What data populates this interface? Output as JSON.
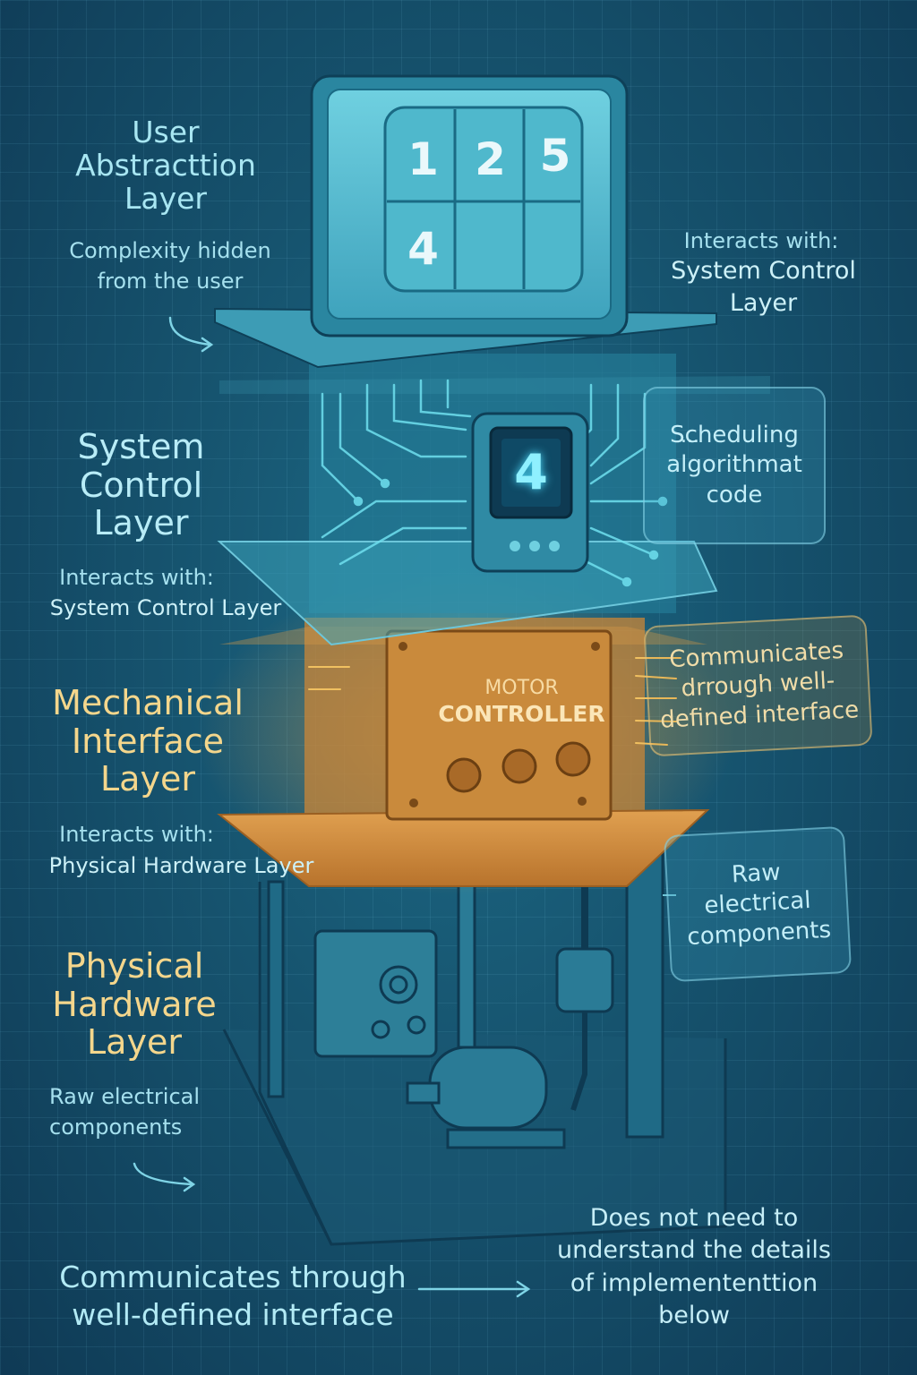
{
  "user_layer": {
    "title_lines": [
      "User",
      "Abstracttion",
      "Layer"
    ],
    "desc_lines": [
      "Complexity hidden",
      "from the user"
    ],
    "interacts_label": "Interacts with:",
    "interacts_target_lines": [
      "System Control",
      "Layer"
    ],
    "keypad": [
      "1",
      "2",
      "5",
      "4",
      "",
      ""
    ]
  },
  "system_layer": {
    "title_lines": [
      "System",
      "Control",
      "Layer"
    ],
    "interacts_label": "Interacts with:",
    "interacts_target": "System Control Layer",
    "display_value": "4",
    "callout_dots": "...",
    "callout_lines": [
      "Scheduling",
      "algorithmat",
      "code"
    ]
  },
  "mechanical_layer": {
    "title_lines": [
      "Mechanical",
      "Interface",
      "Layer"
    ],
    "interacts_label": "Interacts with:",
    "interacts_target": "Physical Hardware Layer",
    "box_line1": "MOTOR",
    "box_line2": "CONTROLLER",
    "callout_lines": [
      "Communicates",
      "drrough well-",
      "defined interface"
    ]
  },
  "physical_layer": {
    "title_lines": [
      "Physical",
      "Hardware",
      "Layer"
    ],
    "desc_lines": [
      "Raw electrical",
      "components"
    ],
    "callout_lines": [
      "Raw",
      "electrical",
      "components"
    ]
  },
  "footer": {
    "left_lines": [
      "Communicates through",
      "well-defined interface"
    ],
    "right_lines": [
      "Does not need to",
      "understand the details",
      "of implemententtion below"
    ]
  },
  "colors": {
    "background": "#16536e",
    "cyan_text": "#a8e6f2",
    "gold_text": "#f4d68c",
    "orange_layer": "#d08a3a",
    "screen_face": "#5cbfd2"
  }
}
